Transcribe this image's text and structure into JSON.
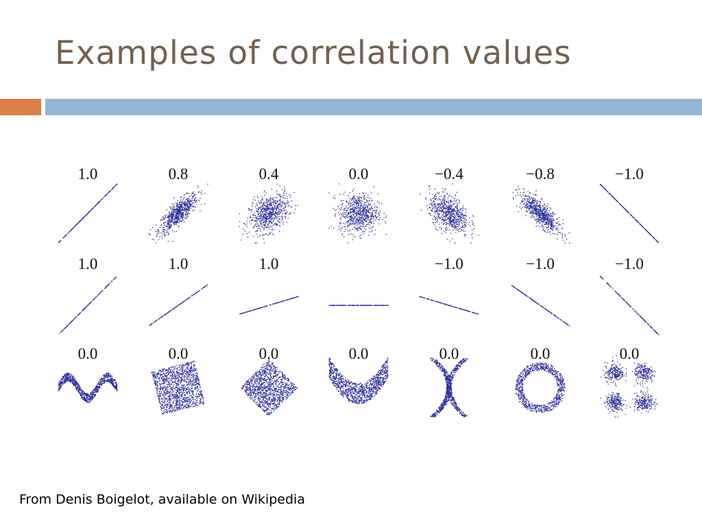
{
  "slide": {
    "title": "Examples of correlation values",
    "credit": "From Denis Boigelot, available on Wikipedia"
  },
  "colors": {
    "title": "#73604f",
    "accent_orange": "#dd8047",
    "accent_blue": "#94b6d2",
    "points": "#2b2d9a"
  },
  "chart_data": {
    "type": "scatter",
    "rows": [
      {
        "labels": [
          "1.0",
          "0.8",
          "0.4",
          "0.0",
          "−0.4",
          "−0.8",
          "−1.0"
        ],
        "patterns": [
          "r=1.0",
          "r=0.8",
          "r=0.4",
          "r=0.0",
          "r=-0.4",
          "r=-0.8",
          "r=-1.0"
        ]
      },
      {
        "labels": [
          "1.0",
          "1.0",
          "1.0",
          "",
          "−1.0",
          "−1.0",
          "−1.0"
        ],
        "patterns": [
          "line slope 1.0",
          "line slope 0.7",
          "line slope 0.3",
          "line slope 0",
          "line slope -0.3",
          "line slope -0.7",
          "line slope -1.0"
        ]
      },
      {
        "labels": [
          "0.0",
          "0.0",
          "0.0",
          "0.0",
          "0.0",
          "0.0",
          "0.0"
        ],
        "patterns": [
          "wave",
          "rotated square",
          "diamond",
          "parabola",
          "x-shape",
          "ring",
          "four clusters"
        ]
      }
    ]
  }
}
